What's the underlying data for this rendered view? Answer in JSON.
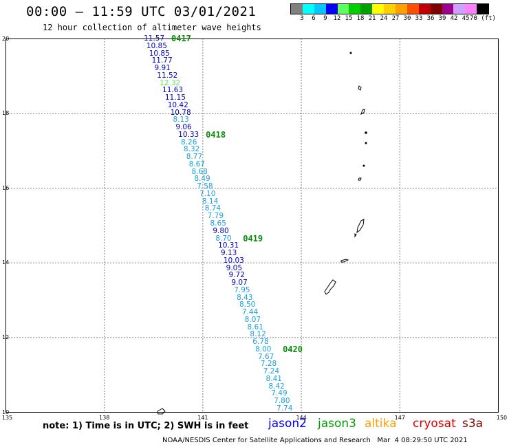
{
  "header": {
    "title": "00:00 – 11:59 UTC 03/01/2021",
    "subtitle": "12 hour collection of altimeter wave heights"
  },
  "scale": {
    "colors": [
      "#808080",
      "#00ffff",
      "#00c8ff",
      "#0000ff",
      "#60ff60",
      "#00d000",
      "#00a000",
      "#ffff00",
      "#ffd000",
      "#ffa000",
      "#ff5000",
      "#c00000",
      "#800000",
      "#a00090",
      "#d0a0ff",
      "#ff80ff",
      "#000000"
    ],
    "labels": [
      "3",
      "6",
      "9",
      "12",
      "15",
      "18",
      "21",
      "24",
      "27",
      "30",
      "33",
      "36",
      "39",
      "42",
      "45",
      "70 (ft)"
    ]
  },
  "axes": {
    "lat_ticks": [
      "20",
      "18",
      "16",
      "14",
      "12",
      "10"
    ],
    "lon_ticks": [
      "135",
      "138",
      "141",
      "144",
      "147",
      "150"
    ]
  },
  "wave_heights": [
    {
      "v": "11.57",
      "c": "#0000c0"
    },
    {
      "v": "10.85",
      "c": "#0000c0"
    },
    {
      "v": "10.85",
      "c": "#0000c0"
    },
    {
      "v": "11.77",
      "c": "#0000c0"
    },
    {
      "v": "9.91",
      "c": "#0000c0"
    },
    {
      "v": "11.52",
      "c": "#0000c0"
    },
    {
      "v": "12.32",
      "c": "#60e060"
    },
    {
      "v": "11.63",
      "c": "#0000c0"
    },
    {
      "v": "11.15",
      "c": "#0000c0"
    },
    {
      "v": "10.42",
      "c": "#0000c0"
    },
    {
      "v": "10.78",
      "c": "#0000c0"
    },
    {
      "v": "8.13",
      "c": "#1aa0e0"
    },
    {
      "v": "9.06",
      "c": "#0000c0"
    },
    {
      "v": "10.33",
      "c": "#0000c0"
    },
    {
      "v": "8.26",
      "c": "#1aa0e0"
    },
    {
      "v": "8.32",
      "c": "#1aa0e0"
    },
    {
      "v": "8.77",
      "c": "#1aa0e0"
    },
    {
      "v": "8.67",
      "c": "#1aa0e0"
    },
    {
      "v": "8.68",
      "c": "#1aa0e0"
    },
    {
      "v": "8.49",
      "c": "#1aa0e0"
    },
    {
      "v": "7.58",
      "c": "#1aa0e0"
    },
    {
      "v": "7.10",
      "c": "#1aa0e0"
    },
    {
      "v": "8.14",
      "c": "#1aa0e0"
    },
    {
      "v": "8.74",
      "c": "#1aa0e0"
    },
    {
      "v": "7.79",
      "c": "#1aa0e0"
    },
    {
      "v": "8.65",
      "c": "#1aa0e0"
    },
    {
      "v": "9.80",
      "c": "#0000c0"
    },
    {
      "v": "8.70",
      "c": "#1aa0e0"
    },
    {
      "v": "10.31",
      "c": "#0000c0"
    },
    {
      "v": "9.13",
      "c": "#0000c0"
    },
    {
      "v": "10.03",
      "c": "#0000c0"
    },
    {
      "v": "9.05",
      "c": "#0000c0"
    },
    {
      "v": "9.72",
      "c": "#0000c0"
    },
    {
      "v": "9.07",
      "c": "#0000c0"
    },
    {
      "v": "7.95",
      "c": "#1aa0e0"
    },
    {
      "v": "8.43",
      "c": "#1aa0e0"
    },
    {
      "v": "8.50",
      "c": "#1aa0e0"
    },
    {
      "v": "7.44",
      "c": "#1aa0e0"
    },
    {
      "v": "8.07",
      "c": "#1aa0e0"
    },
    {
      "v": "8.61",
      "c": "#1aa0e0"
    },
    {
      "v": "8.12",
      "c": "#1aa0e0"
    },
    {
      "v": "6.78",
      "c": "#1aa0e0"
    },
    {
      "v": "8.00",
      "c": "#1aa0e0"
    },
    {
      "v": "7.67",
      "c": "#1aa0e0"
    },
    {
      "v": "7.28",
      "c": "#1aa0e0"
    },
    {
      "v": "7.24",
      "c": "#1aa0e0"
    },
    {
      "v": "8.41",
      "c": "#1aa0e0"
    },
    {
      "v": "8.42",
      "c": "#1aa0e0"
    },
    {
      "v": "7.49",
      "c": "#1aa0e0"
    },
    {
      "v": "7.80",
      "c": "#1aa0e0"
    },
    {
      "v": "7.74",
      "c": "#1aa0e0"
    }
  ],
  "time_labels": [
    "0417",
    "0418",
    "0419",
    "0420"
  ],
  "footer": {
    "note": "note: 1) Time is in UTC; 2) SWH is in feet",
    "satellites": [
      {
        "name": "jason2",
        "color": "#0000ff"
      },
      {
        "name": "jason3",
        "color": "#00a000"
      },
      {
        "name": "altika",
        "color": "#ffa000"
      },
      {
        "name": "cryosat",
        "color": "#e00000"
      },
      {
        "name": "s3a",
        "color": "#800000"
      }
    ],
    "credit": "NOAA/NESDIS Center for Satellite Applications and Research   Mar  4 08:29:50 UTC 2021"
  }
}
